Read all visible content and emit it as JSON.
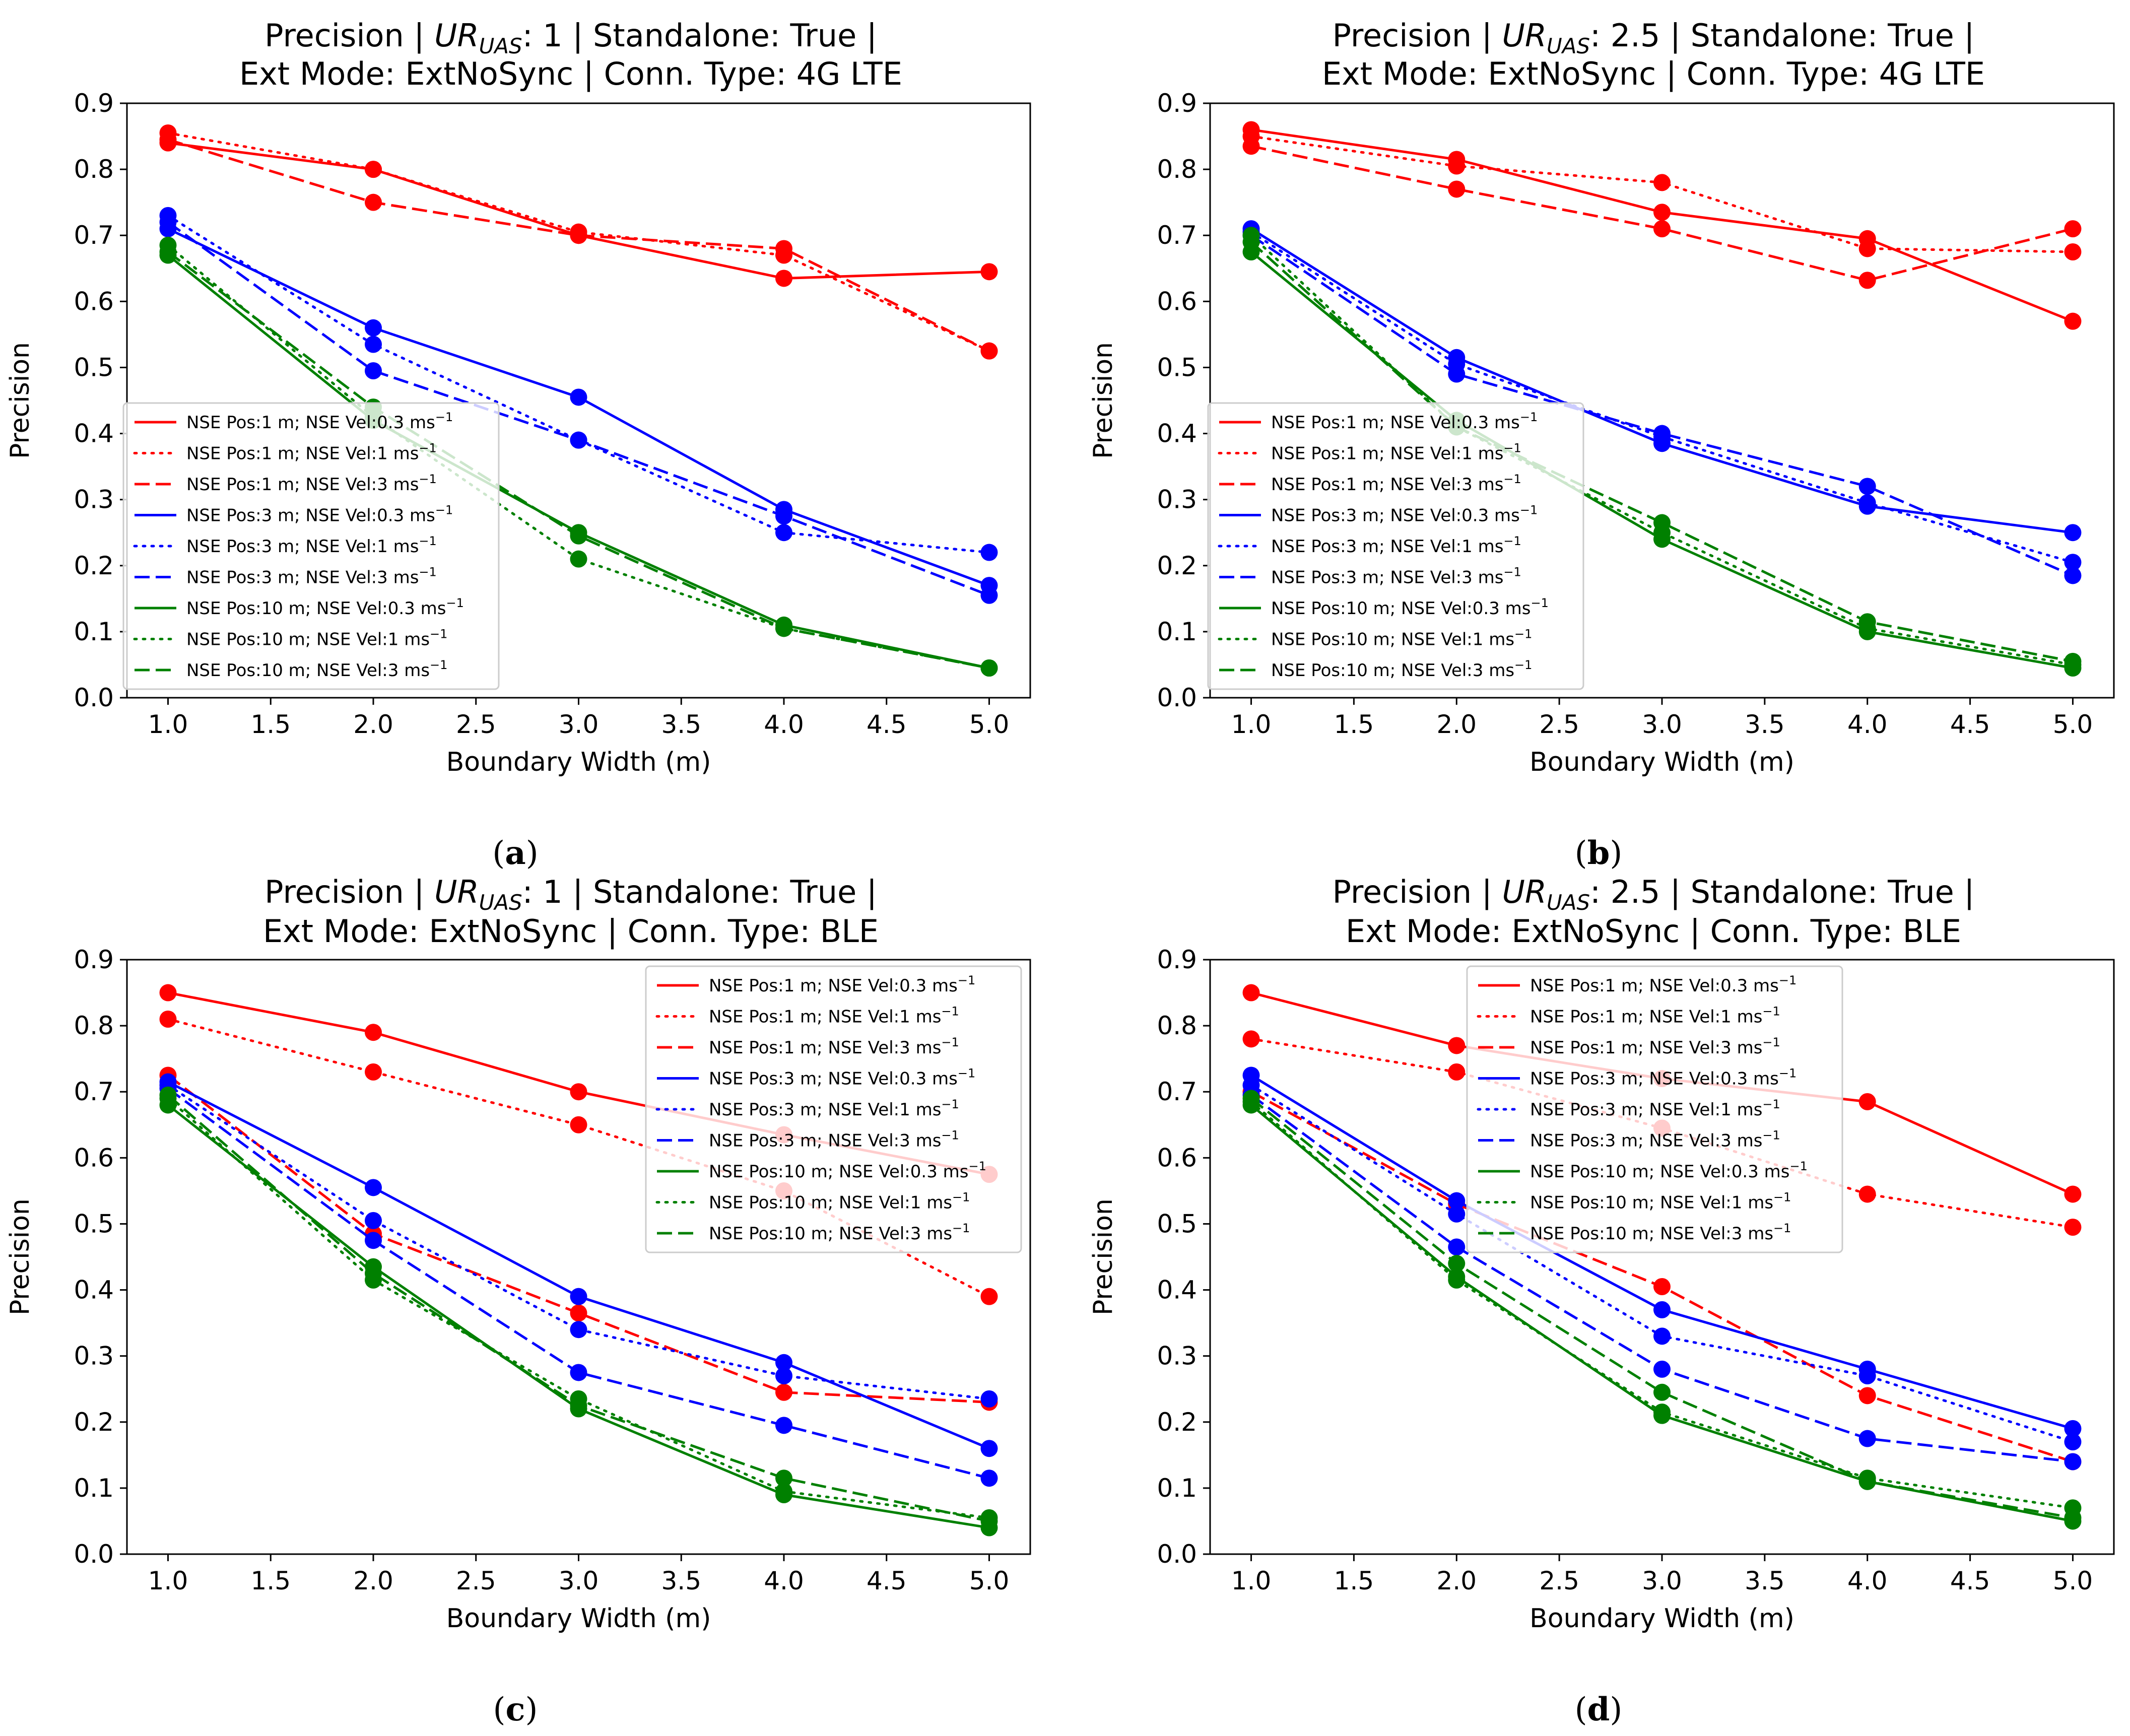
{
  "colors": {
    "red": "#ff0000",
    "blue": "#0000ff",
    "green": "#008000"
  },
  "chart_data": [
    {
      "type": "line",
      "panel_label": "(a)",
      "title_prefix": "Precision | ",
      "title_ur_main": "UR",
      "title_ur_sub": "UAS",
      "title_rest": ": 1 | Standalone: True |",
      "title_line2": "Ext Mode: ExtNoSync | Conn. Type: 4G LTE",
      "xlabel": "Boundary  Width (m)",
      "ylabel": "Precision",
      "xlim": [
        0.8,
        5.2
      ],
      "ylim": [
        0.0,
        0.9
      ],
      "xticks": [
        "1.0",
        "1.5",
        "2.0",
        "2.5",
        "3.0",
        "3.5",
        "4.0",
        "4.5",
        "5.0"
      ],
      "yticks": [
        "0.0",
        "0.1",
        "0.2",
        "0.3",
        "0.4",
        "0.5",
        "0.6",
        "0.7",
        "0.8",
        "0.9"
      ],
      "legend_position": "center-left",
      "x": [
        1,
        2,
        3,
        4,
        5
      ],
      "series": [
        {
          "name": "NSE Pos:1 m; NSE Vel:0.3 ms",
          "color": "red",
          "dash": "solid",
          "values": [
            0.84,
            0.8,
            0.7,
            0.635,
            0.645
          ]
        },
        {
          "name": "NSE Pos:1 m; NSE Vel:1 ms",
          "color": "red",
          "dash": "dotted",
          "values": [
            0.855,
            0.8,
            0.705,
            0.67,
            0.525
          ]
        },
        {
          "name": "NSE Pos:1 m; NSE Vel:3 ms",
          "color": "red",
          "dash": "dashed",
          "values": [
            0.845,
            0.75,
            0.7,
            0.68,
            0.525
          ]
        },
        {
          "name": "NSE Pos:3 m; NSE Vel:0.3 ms",
          "color": "blue",
          "dash": "solid",
          "values": [
            0.71,
            0.56,
            0.455,
            0.285,
            0.17
          ]
        },
        {
          "name": "NSE Pos:3 m; NSE Vel:1 ms",
          "color": "blue",
          "dash": "dotted",
          "values": [
            0.73,
            0.535,
            0.39,
            0.25,
            0.22
          ]
        },
        {
          "name": "NSE Pos:3 m; NSE Vel:3 ms",
          "color": "blue",
          "dash": "dashed",
          "values": [
            0.72,
            0.495,
            0.39,
            0.275,
            0.155
          ]
        },
        {
          "name": "NSE Pos:10 m; NSE Vel:0.3 ms",
          "color": "green",
          "dash": "solid",
          "values": [
            0.67,
            0.42,
            0.25,
            0.11,
            0.045
          ]
        },
        {
          "name": "NSE Pos:10 m; NSE Vel:1 ms",
          "color": "green",
          "dash": "dotted",
          "values": [
            0.685,
            0.425,
            0.21,
            0.105,
            0.045
          ]
        },
        {
          "name": "NSE Pos:10 m; NSE Vel:3 ms",
          "color": "green",
          "dash": "dashed",
          "values": [
            0.675,
            0.44,
            0.245,
            0.105,
            0.045
          ]
        }
      ]
    },
    {
      "type": "line",
      "panel_label": "(b)",
      "title_prefix": "Precision | ",
      "title_ur_main": "UR",
      "title_ur_sub": "UAS",
      "title_rest": ": 2.5 | Standalone: True |",
      "title_line2": "Ext Mode: ExtNoSync | Conn. Type: 4G LTE",
      "xlabel": "Boundary  Width (m)",
      "ylabel": "Precision",
      "xlim": [
        0.8,
        5.2
      ],
      "ylim": [
        0.0,
        0.9
      ],
      "xticks": [
        "1.0",
        "1.5",
        "2.0",
        "2.5",
        "3.0",
        "3.5",
        "4.0",
        "4.5",
        "5.0"
      ],
      "yticks": [
        "0.0",
        "0.1",
        "0.2",
        "0.3",
        "0.4",
        "0.5",
        "0.6",
        "0.7",
        "0.8",
        "0.9"
      ],
      "legend_position": "center-left",
      "x": [
        1,
        2,
        3,
        4,
        5
      ],
      "series": [
        {
          "name": "NSE Pos:1 m; NSE Vel:0.3 ms",
          "color": "red",
          "dash": "solid",
          "values": [
            0.86,
            0.815,
            0.735,
            0.695,
            0.57
          ]
        },
        {
          "name": "NSE Pos:1 m; NSE Vel:1 ms",
          "color": "red",
          "dash": "dotted",
          "values": [
            0.85,
            0.805,
            0.78,
            0.68,
            0.675
          ]
        },
        {
          "name": "NSE Pos:1 m; NSE Vel:3 ms",
          "color": "red",
          "dash": "dashed",
          "values": [
            0.835,
            0.77,
            0.71,
            0.632,
            0.71
          ]
        },
        {
          "name": "NSE Pos:3 m; NSE Vel:0.3 ms",
          "color": "blue",
          "dash": "solid",
          "values": [
            0.71,
            0.515,
            0.385,
            0.29,
            0.25
          ]
        },
        {
          "name": "NSE Pos:3 m; NSE Vel:1 ms",
          "color": "blue",
          "dash": "dotted",
          "values": [
            0.705,
            0.505,
            0.395,
            0.295,
            0.205
          ]
        },
        {
          "name": "NSE Pos:3 m; NSE Vel:3 ms",
          "color": "blue",
          "dash": "dashed",
          "values": [
            0.7,
            0.49,
            0.4,
            0.32,
            0.185
          ]
        },
        {
          "name": "NSE Pos:10 m; NSE Vel:0.3 ms",
          "color": "green",
          "dash": "solid",
          "values": [
            0.675,
            0.42,
            0.24,
            0.1,
            0.045
          ]
        },
        {
          "name": "NSE Pos:10 m; NSE Vel:1 ms",
          "color": "green",
          "dash": "dotted",
          "values": [
            0.7,
            0.41,
            0.25,
            0.105,
            0.05
          ]
        },
        {
          "name": "NSE Pos:10 m; NSE Vel:3 ms",
          "color": "green",
          "dash": "dashed",
          "values": [
            0.69,
            0.41,
            0.265,
            0.115,
            0.055
          ]
        }
      ]
    },
    {
      "type": "line",
      "panel_label": "(c)",
      "title_prefix": "Precision | ",
      "title_ur_main": "UR",
      "title_ur_sub": "UAS",
      "title_rest": ": 1 | Standalone: True |",
      "title_line2": "Ext Mode: ExtNoSync | Conn. Type: BLE",
      "xlabel": "Boundary  Width (m)",
      "ylabel": "Precision",
      "xlim": [
        0.8,
        5.2
      ],
      "ylim": [
        0.0,
        0.9
      ],
      "xticks": [
        "1.0",
        "1.5",
        "2.0",
        "2.5",
        "3.0",
        "3.5",
        "4.0",
        "4.5",
        "5.0"
      ],
      "yticks": [
        "0.0",
        "0.1",
        "0.2",
        "0.3",
        "0.4",
        "0.5",
        "0.6",
        "0.7",
        "0.8",
        "0.9"
      ],
      "legend_position": "top-right",
      "x": [
        1,
        2,
        3,
        4,
        5
      ],
      "series": [
        {
          "name": "NSE Pos:1 m; NSE Vel:0.3 ms",
          "color": "red",
          "dash": "solid",
          "values": [
            0.85,
            0.79,
            0.7,
            0.635,
            0.575
          ]
        },
        {
          "name": "NSE Pos:1 m; NSE Vel:1 ms",
          "color": "red",
          "dash": "dotted",
          "values": [
            0.81,
            0.73,
            0.65,
            0.55,
            0.39
          ]
        },
        {
          "name": "NSE Pos:1 m; NSE Vel:3 ms",
          "color": "red",
          "dash": "dashed",
          "values": [
            0.725,
            0.485,
            0.365,
            0.245,
            0.23
          ]
        },
        {
          "name": "NSE Pos:3 m; NSE Vel:0.3 ms",
          "color": "blue",
          "dash": "solid",
          "values": [
            0.715,
            0.555,
            0.39,
            0.29,
            0.16
          ]
        },
        {
          "name": "NSE Pos:3 m; NSE Vel:1 ms",
          "color": "blue",
          "dash": "dotted",
          "values": [
            0.71,
            0.505,
            0.34,
            0.27,
            0.235
          ]
        },
        {
          "name": "NSE Pos:3 m; NSE Vel:3 ms",
          "color": "blue",
          "dash": "dashed",
          "values": [
            0.705,
            0.475,
            0.275,
            0.195,
            0.115
          ]
        },
        {
          "name": "NSE Pos:10 m; NSE Vel:0.3 ms",
          "color": "green",
          "dash": "solid",
          "values": [
            0.68,
            0.435,
            0.22,
            0.09,
            0.04
          ]
        },
        {
          "name": "NSE Pos:10 m; NSE Vel:1 ms",
          "color": "green",
          "dash": "dotted",
          "values": [
            0.69,
            0.415,
            0.235,
            0.095,
            0.055
          ]
        },
        {
          "name": "NSE Pos:10 m; NSE Vel:3 ms",
          "color": "green",
          "dash": "dashed",
          "values": [
            0.695,
            0.425,
            0.225,
            0.115,
            0.05
          ]
        }
      ]
    },
    {
      "type": "line",
      "panel_label": "(d)",
      "title_prefix": "Precision | ",
      "title_ur_main": "UR",
      "title_ur_sub": "UAS",
      "title_rest": ": 2.5 | Standalone: True |",
      "title_line2": "Ext Mode: ExtNoSync | Conn. Type: BLE",
      "xlabel": "Boundary  Width (m)",
      "ylabel": "Precision",
      "xlim": [
        0.8,
        5.2
      ],
      "ylim": [
        0.0,
        0.9
      ],
      "xticks": [
        "1.0",
        "1.5",
        "2.0",
        "2.5",
        "3.0",
        "3.5",
        "4.0",
        "4.5",
        "5.0"
      ],
      "yticks": [
        "0.0",
        "0.1",
        "0.2",
        "0.3",
        "0.4",
        "0.5",
        "0.6",
        "0.7",
        "0.8",
        "0.9"
      ],
      "legend_position": "top-center",
      "x": [
        1,
        2,
        3,
        4,
        5
      ],
      "series": [
        {
          "name": "NSE Pos:1 m; NSE Vel:0.3 ms",
          "color": "red",
          "dash": "solid",
          "values": [
            0.85,
            0.77,
            0.72,
            0.685,
            0.545
          ]
        },
        {
          "name": "NSE Pos:1 m; NSE Vel:1 ms",
          "color": "red",
          "dash": "dotted",
          "values": [
            0.78,
            0.73,
            0.645,
            0.545,
            0.495
          ]
        },
        {
          "name": "NSE Pos:1 m; NSE Vel:3 ms",
          "color": "red",
          "dash": "dashed",
          "values": [
            0.7,
            0.53,
            0.405,
            0.24,
            0.14
          ]
        },
        {
          "name": "NSE Pos:3 m; NSE Vel:0.3 ms",
          "color": "blue",
          "dash": "solid",
          "values": [
            0.725,
            0.535,
            0.37,
            0.28,
            0.19
          ]
        },
        {
          "name": "NSE Pos:3 m; NSE Vel:1 ms",
          "color": "blue",
          "dash": "dotted",
          "values": [
            0.71,
            0.515,
            0.33,
            0.27,
            0.17
          ]
        },
        {
          "name": "NSE Pos:3 m; NSE Vel:3 ms",
          "color": "blue",
          "dash": "dashed",
          "values": [
            0.695,
            0.465,
            0.28,
            0.175,
            0.14
          ]
        },
        {
          "name": "NSE Pos:10 m; NSE Vel:0.3 ms",
          "color": "green",
          "dash": "solid",
          "values": [
            0.68,
            0.42,
            0.21,
            0.11,
            0.05
          ]
        },
        {
          "name": "NSE Pos:10 m; NSE Vel:1 ms",
          "color": "green",
          "dash": "dotted",
          "values": [
            0.685,
            0.415,
            0.215,
            0.115,
            0.07
          ]
        },
        {
          "name": "NSE Pos:10 m; NSE Vel:3 ms",
          "color": "green",
          "dash": "dashed",
          "values": [
            0.69,
            0.44,
            0.245,
            0.11,
            0.055
          ]
        }
      ]
    }
  ]
}
